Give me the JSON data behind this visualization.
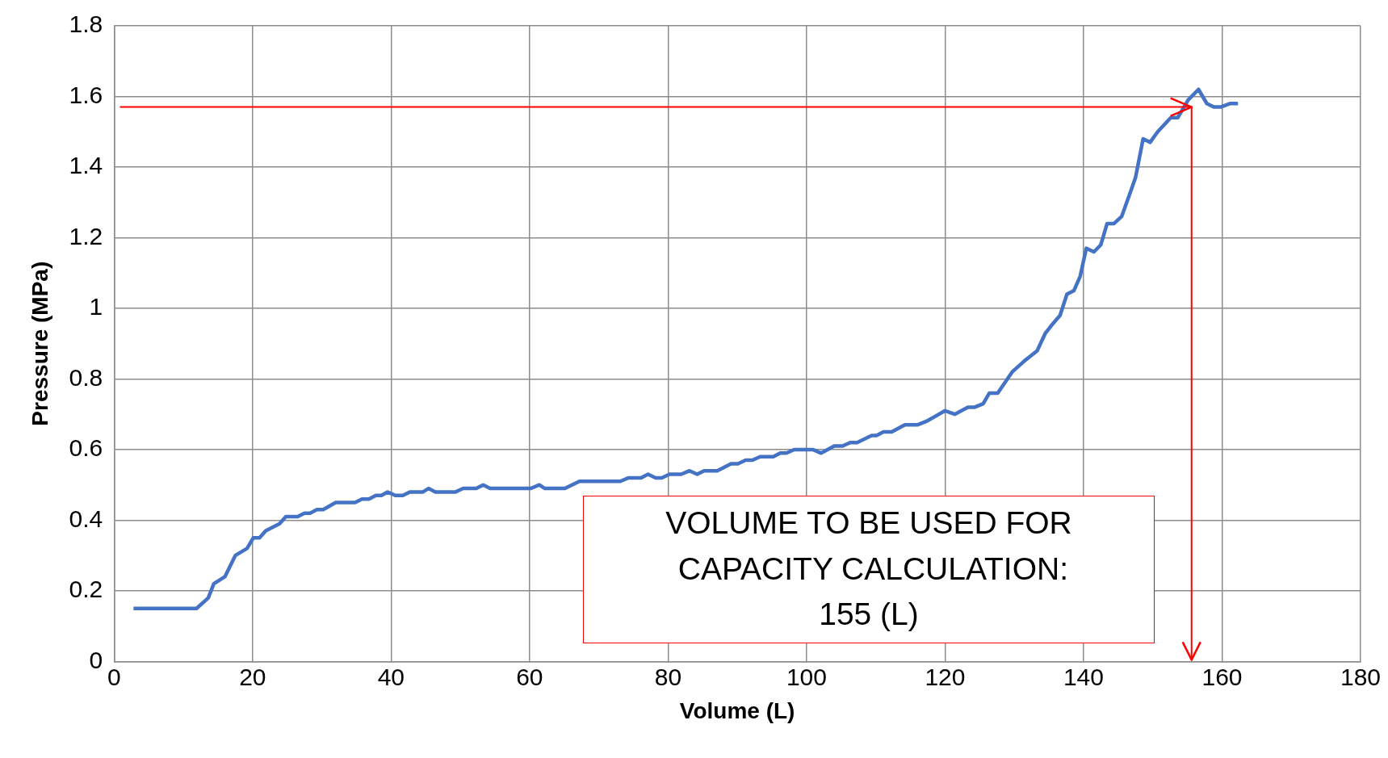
{
  "chart_data": {
    "type": "line",
    "xlabel": "Volume (L)",
    "ylabel": "Pressure (MPa)",
    "x": [
      2.8,
      11.9,
      13.6,
      14.4,
      16.0,
      17.5,
      19.2,
      20.1,
      21.0,
      21.9,
      23.9,
      24.8,
      26.5,
      27.5,
      28.3,
      29.3,
      30.2,
      32.0,
      34.8,
      35.8,
      36.8,
      37.8,
      38.6,
      39.5,
      40.6,
      41.7,
      42.7,
      44.6,
      45.4,
      46.4,
      49.3,
      50.4,
      52.3,
      53.3,
      54.3,
      60.2,
      61.4,
      62.2,
      65.1,
      67.2,
      73.1,
      74.3,
      76.1,
      77.1,
      78.2,
      79.1,
      80.2,
      81.9,
      83.1,
      84.2,
      85.2,
      87.1,
      89.1,
      90.1,
      91.2,
      92.2,
      93.3,
      95.2,
      96.2,
      97.1,
      98.2,
      100.9,
      102.1,
      104.0,
      105.2,
      106.3,
      107.3,
      109.4,
      110.1,
      111.1,
      112.3,
      114.2,
      116.0,
      117.3,
      120.0,
      121.4,
      123.3,
      124.3,
      125.5,
      126.4,
      127.6,
      129.7,
      131.4,
      133.3,
      134.5,
      135.3,
      136.6,
      137.6,
      138.6,
      139.5,
      140.4,
      141.5,
      142.5,
      143.4,
      144.4,
      145.5,
      146.6,
      147.5,
      148.6,
      149.6,
      150.7,
      152.6,
      153.6,
      155.1,
      156.6,
      157.8,
      158.8,
      159.8,
      161.2,
      162.3
    ],
    "series": [
      {
        "color": "#4472c4",
        "values": [
          0.15,
          0.15,
          0.18,
          0.22,
          0.24,
          0.3,
          0.32,
          0.35,
          0.35,
          0.37,
          0.39,
          0.41,
          0.41,
          0.42,
          0.42,
          0.43,
          0.43,
          0.45,
          0.45,
          0.46,
          0.46,
          0.47,
          0.47,
          0.48,
          0.47,
          0.47,
          0.48,
          0.48,
          0.49,
          0.48,
          0.48,
          0.49,
          0.49,
          0.5,
          0.49,
          0.49,
          0.5,
          0.49,
          0.49,
          0.51,
          0.51,
          0.52,
          0.52,
          0.53,
          0.52,
          0.52,
          0.53,
          0.53,
          0.54,
          0.53,
          0.54,
          0.54,
          0.56,
          0.56,
          0.57,
          0.57,
          0.58,
          0.58,
          0.59,
          0.59,
          0.6,
          0.6,
          0.59,
          0.61,
          0.61,
          0.62,
          0.62,
          0.64,
          0.64,
          0.65,
          0.65,
          0.67,
          0.67,
          0.68,
          0.71,
          0.7,
          0.72,
          0.72,
          0.73,
          0.76,
          0.76,
          0.82,
          0.85,
          0.88,
          0.93,
          0.95,
          0.98,
          1.04,
          1.05,
          1.09,
          1.17,
          1.16,
          1.18,
          1.24,
          1.24,
          1.26,
          1.32,
          1.37,
          1.48,
          1.47,
          1.5,
          1.54,
          1.54,
          1.59,
          1.62,
          1.58,
          1.57,
          1.57,
          1.58,
          1.58
        ]
      }
    ],
    "xlim": [
      0,
      180
    ],
    "xticks": [
      0,
      20,
      40,
      60,
      80,
      100,
      120,
      140,
      160,
      180
    ],
    "ylim": [
      0,
      1.8
    ],
    "yticks": [
      0,
      0.2,
      0.4,
      0.6,
      0.8,
      1,
      1.2,
      1.4,
      1.6,
      1.8
    ],
    "grid": true,
    "legend": false,
    "marker": "none",
    "line_style": "solid",
    "ref_lines": [
      {
        "axis": "y",
        "value": 1.57,
        "color": "#ff0000"
      },
      {
        "axis": "x",
        "value": 155.6,
        "color": "#ff0000"
      }
    ],
    "annotations": [
      "VOLUME TO BE USED FOR\n CAPACITY CALCULATION:\n155 (L)"
    ]
  }
}
